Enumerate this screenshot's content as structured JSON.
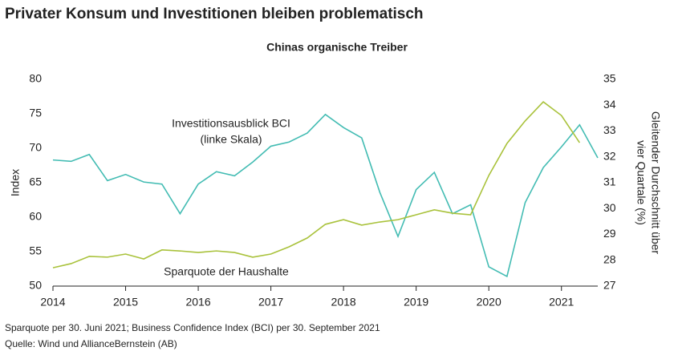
{
  "chart_data": {
    "type": "line",
    "title": "Privater Konsum und Investitionen bleiben problematisch",
    "subtitle": "Chinas organische Treiber",
    "y_label": "Index",
    "y2_label": [
      "Gleitender Durchschnitt über",
      "vier Quartale (%)"
    ],
    "annotations": [
      "Investitionsausblick BCI",
      "(linke Skala)",
      "Sparquote der Haushalte"
    ],
    "footnotes": [
      "Sparquote per 30. Juni 2021; Business Confidence Index (BCI) per 30. September 2021",
      "Quelle: Wind und AllianceBernstein (AB)"
    ],
    "x": [
      2014,
      2014.25,
      2014.5,
      2014.75,
      2015,
      2015.25,
      2015.5,
      2015.75,
      2016,
      2016.25,
      2016.5,
      2016.75,
      2017,
      2017.25,
      2017.5,
      2017.75,
      2018,
      2018.25,
      2018.5,
      2018.75,
      2019,
      2019.25,
      2019.5,
      2019.75,
      2020,
      2020.25,
      2020.5,
      2020.75,
      2021,
      2021.25,
      2021.5
    ],
    "series": [
      {
        "name": "Investitionsausblick BCI",
        "color": "#43bcb3",
        "axis": "y",
        "values": [
          68.3,
          68.1,
          69.1,
          65.3,
          66.2,
          65.1,
          64.8,
          60.5,
          64.8,
          66.6,
          66.0,
          68.0,
          70.3,
          70.9,
          72.2,
          74.9,
          73.0,
          71.5,
          63.6,
          57.2,
          64.0,
          66.5,
          60.5,
          61.8,
          52.8,
          51.4,
          62.1,
          67.2,
          70.2,
          73.4,
          68.6
        ]
      },
      {
        "name": "Sparquote der Haushalte",
        "color": "#a9c23b",
        "axis": "y2",
        "values": [
          27.71,
          27.87,
          28.15,
          28.12,
          28.24,
          28.05,
          28.4,
          28.36,
          28.3,
          28.36,
          28.3,
          28.12,
          28.24,
          28.52,
          28.86,
          29.39,
          29.57,
          29.36,
          29.48,
          29.57,
          29.76,
          29.95,
          29.82,
          29.76,
          31.28,
          32.52,
          33.39,
          34.13,
          33.6,
          32.55,
          null
        ]
      }
    ],
    "xlim": [
      2014,
      2021.5
    ],
    "xticks": [
      2014,
      2015,
      2016,
      2017,
      2018,
      2019,
      2020,
      2021
    ],
    "ylim": [
      50,
      80
    ],
    "yticks": [
      50,
      55,
      60,
      65,
      70,
      75,
      80
    ],
    "y2lim": [
      27,
      35
    ],
    "y2ticks": [
      27,
      28,
      29,
      30,
      31,
      32,
      33,
      34,
      35
    ]
  }
}
